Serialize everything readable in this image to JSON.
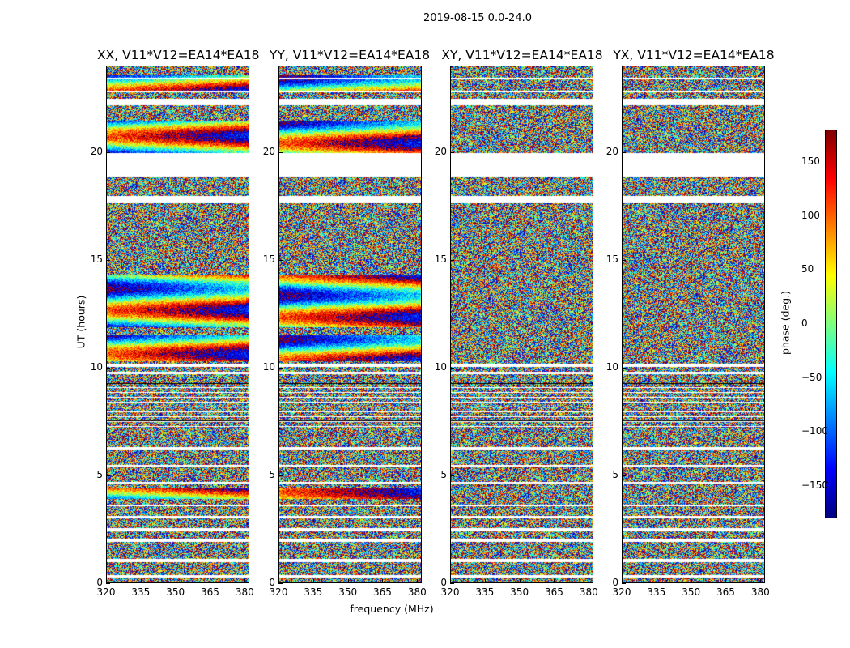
{
  "chart_data": {
    "type": "heatmap",
    "suptitle": "2019-08-15 0.0-24.0",
    "xlabel": "frequency (MHz)",
    "ylabel": "UT (hours)",
    "xlim": [
      320,
      382
    ],
    "ylim": [
      0,
      24
    ],
    "xticks": [
      320,
      335,
      350,
      365,
      380
    ],
    "yticks": [
      0,
      5,
      10,
      15,
      20
    ],
    "panels": [
      {
        "title": "XX, V11*V12=EA14*EA18",
        "kind": "parallel"
      },
      {
        "title": "YY, V11*V12=EA14*EA18",
        "kind": "parallel"
      },
      {
        "title": "XY, V11*V12=EA14*EA18",
        "kind": "cross"
      },
      {
        "title": "YX, V11*V12=EA14*EA18",
        "kind": "cross"
      }
    ],
    "colorbar": {
      "label": "phase (deg.)",
      "range": [
        -180,
        180
      ],
      "ticks": [
        150,
        100,
        50,
        0,
        -50,
        -100,
        -150
      ],
      "colormap": "jet"
    },
    "gaps_hours": [
      [
        0.25,
        0.35
      ],
      [
        0.95,
        1.1
      ],
      [
        1.9,
        2.05
      ],
      [
        2.4,
        2.55
      ],
      [
        3.0,
        3.1
      ],
      [
        3.55,
        3.65
      ],
      [
        4.6,
        4.7
      ],
      [
        5.4,
        5.5
      ],
      [
        6.2,
        6.3
      ],
      [
        9.7,
        9.8
      ],
      [
        10.05,
        10.2
      ],
      [
        19.5,
        20.0
      ],
      [
        18.9,
        19.5
      ],
      [
        17.7,
        18.0
      ],
      [
        22.2,
        22.5
      ],
      [
        22.8,
        22.9
      ],
      [
        23.4,
        23.5
      ]
    ],
    "coherent_bands_hours": [
      [
        3.9,
        4.4
      ],
      [
        10.3,
        11.5
      ],
      [
        11.9,
        14.3
      ],
      [
        19.9,
        21.5
      ],
      [
        22.9,
        23.6
      ]
    ]
  }
}
